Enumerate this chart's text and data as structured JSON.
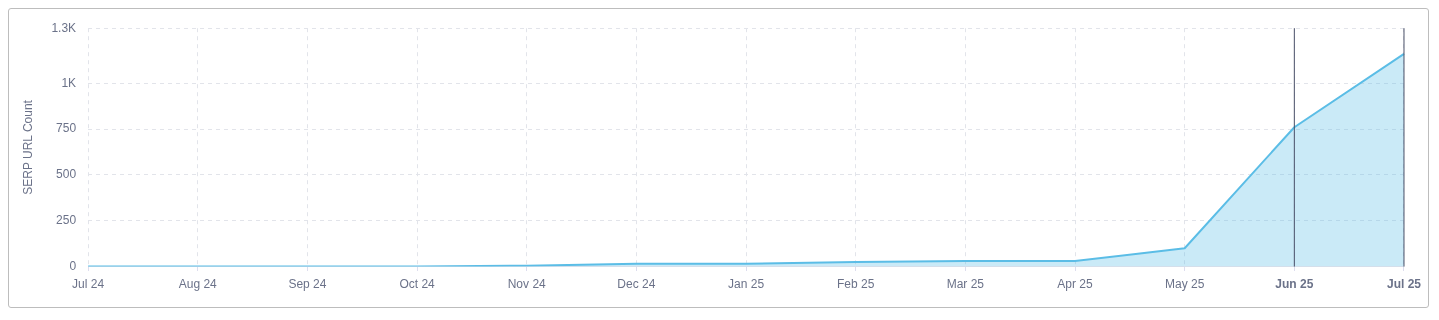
{
  "chart_data": {
    "type": "area",
    "ylabel": "SERP URL Count",
    "categories": [
      "Jul 24",
      "Aug 24",
      "Sep 24",
      "Oct 24",
      "Nov 24",
      "Dec 24",
      "Jan 25",
      "Feb 25",
      "Mar 25",
      "Apr 25",
      "May 25",
      "Jun 25",
      "Jul 25"
    ],
    "series": [
      {
        "color": "#5bbde6",
        "values": [
          0,
          0,
          0,
          0,
          5,
          15,
          15,
          25,
          30,
          30,
          100,
          760,
          1160
        ]
      }
    ],
    "ylim": [
      0,
      1300
    ],
    "yticks": [
      0,
      250,
      500,
      750,
      {
        "value": 1000,
        "label": "1K"
      },
      {
        "value": 1300,
        "label": "1.3K"
      }
    ],
    "ref_lines": [
      {
        "axis": "x",
        "value": "Jun 25",
        "color": "#4a5068"
      },
      {
        "axis": "x",
        "value": "Jul 25",
        "color": "#4a5068"
      }
    ],
    "grid": true,
    "line_style": "solid",
    "marker": "none"
  }
}
